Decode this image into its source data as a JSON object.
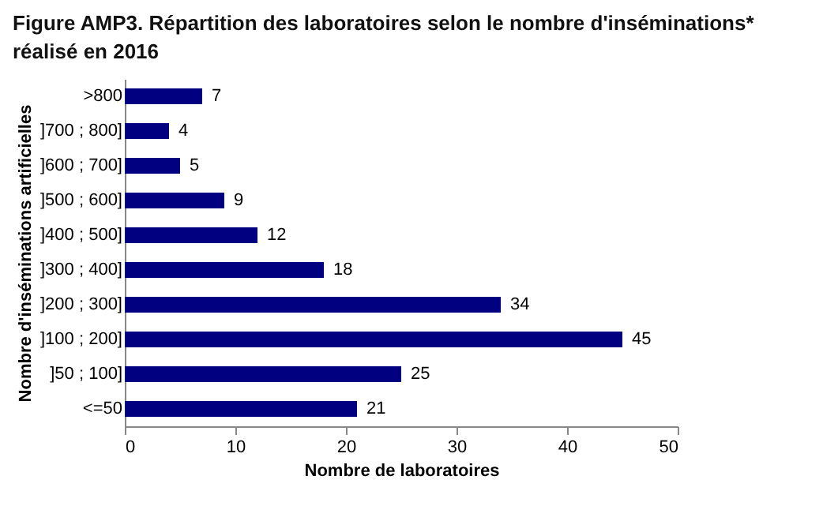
{
  "chart_data": {
    "type": "bar",
    "orientation": "horizontal",
    "title": "Figure AMP3. Répartition des laboratoires selon le nombre d'inséminations* réalisé en 2016",
    "xlabel": "Nombre de laboratoires",
    "ylabel": "Nombre d'inséminations  artificielles",
    "categories": [
      ">800",
      "]700 ; 800]",
      "]600 ; 700]",
      "]500 ; 600]",
      "]400 ; 500]",
      "]300 ; 400]",
      "]200 ; 300]",
      "]100 ; 200]",
      "]50 ; 100]",
      "<=50"
    ],
    "values": [
      7,
      4,
      5,
      9,
      12,
      18,
      34,
      45,
      25,
      21
    ],
    "color": "#000080",
    "data_labels": true,
    "xlim": [
      0,
      50
    ],
    "xticks": [
      0,
      10,
      20,
      30,
      40,
      50
    ],
    "grid": false
  }
}
